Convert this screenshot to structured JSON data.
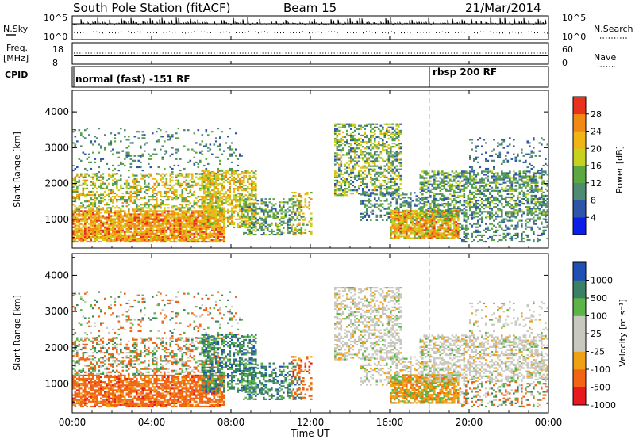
{
  "header": {
    "title": "South Pole Station (fitACF)",
    "beam": "Beam 15",
    "date": "21/Mar/2014"
  },
  "noise_panel": {
    "left_label": "N.Sky",
    "right_label": "N.Search",
    "left_ticks": [
      "10^5",
      "10^0"
    ],
    "right_ticks": [
      "10^5",
      "10^0"
    ]
  },
  "freq_panel": {
    "left_label_1": "Freq.",
    "left_label_2": "[MHz]",
    "right_label": "Nave",
    "left_ticks": [
      "18",
      "8"
    ],
    "right_ticks": [
      "60",
      "0"
    ]
  },
  "cpid_panel": {
    "label": "CPID",
    "modes": [
      {
        "name": "normal (fast) -151 RF",
        "start_hour": 0.1
      },
      {
        "name": "rbsp 200 RF",
        "start_hour": 18.0
      }
    ]
  },
  "chart_data": [
    {
      "type": "heatmap",
      "ylabel": "Slant Range [km]",
      "yticks": [
        1000,
        2000,
        3000,
        4000
      ],
      "ylim": [
        200,
        4600
      ],
      "xlim": [
        0,
        24
      ],
      "colorbar_label": "Power [dB]",
      "colorbar_ticks": [
        "28",
        "24",
        "20",
        "16",
        "12",
        "8",
        "4"
      ]
    },
    {
      "type": "heatmap",
      "ylabel": "Slant Range [km]",
      "yticks": [
        1000,
        2000,
        3000,
        4000
      ],
      "ylim": [
        200,
        4600
      ],
      "xlim": [
        0,
        24
      ],
      "colorbar_label": "Velocity [m s⁻¹]",
      "colorbar_ticks": [
        "1000",
        "500",
        "100",
        "25",
        "-25",
        "-100",
        "-500",
        "-1000"
      ]
    }
  ],
  "x_axis": {
    "label": "Time UT",
    "ticks": [
      "00:00",
      "04:00",
      "08:00",
      "12:00",
      "16:00",
      "20:00",
      "00:00"
    ]
  },
  "colors": {
    "power": [
      "#0a20e6",
      "#2e55a8",
      "#4f8a73",
      "#5ba840",
      "#c8d21e",
      "#f0b414",
      "#f08a14",
      "#e8321e"
    ],
    "velocity": [
      "#e8181e",
      "#f06414",
      "#f0a014",
      "#c8c8c0",
      "#c8c8c0",
      "#5ab446",
      "#3a8064",
      "#2050b4"
    ]
  }
}
